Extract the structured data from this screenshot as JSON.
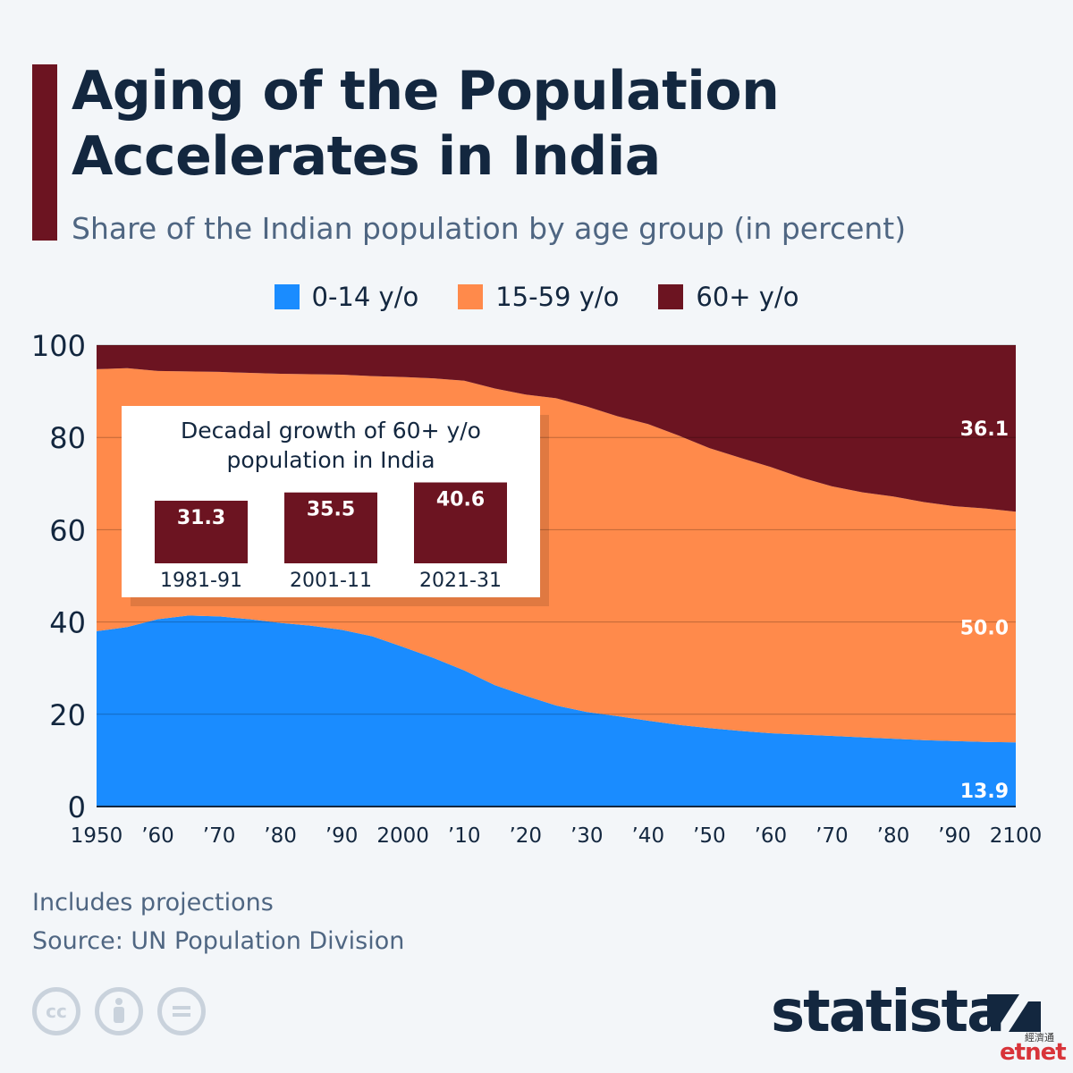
{
  "title": "Aging of the Population Accelerates in India",
  "subtitle": "Share of the Indian population by age group (in percent)",
  "legend": [
    {
      "label": "0-14 y/o",
      "color": "#1a8cff"
    },
    {
      "label": "15-59 y/o",
      "color": "#ff8a4b"
    },
    {
      "label": "60+ y/o",
      "color": "#6c1421"
    }
  ],
  "chart_data": {
    "type": "area",
    "stacked": true,
    "x": [
      1950,
      1955,
      1960,
      1965,
      1970,
      1975,
      1980,
      1985,
      1990,
      1995,
      2000,
      2005,
      2010,
      2015,
      2020,
      2025,
      2030,
      2035,
      2040,
      2045,
      2050,
      2055,
      2060,
      2065,
      2070,
      2075,
      2080,
      2085,
      2090,
      2095,
      2100
    ],
    "series": [
      {
        "name": "0-14 y/o",
        "color": "#1a8cff",
        "values": [
          38.0,
          38.9,
          40.6,
          41.4,
          41.2,
          40.6,
          39.8,
          39.2,
          38.3,
          36.9,
          34.6,
          32.2,
          29.5,
          26.3,
          24.0,
          21.9,
          20.5,
          19.6,
          18.6,
          17.7,
          17.0,
          16.4,
          15.9,
          15.6,
          15.3,
          15.0,
          14.7,
          14.4,
          14.2,
          14.0,
          13.9
        ]
      },
      {
        "name": "15-59 y/o",
        "color": "#ff8a4b",
        "values": [
          56.8,
          56.1,
          53.8,
          52.9,
          53.0,
          53.4,
          54.0,
          54.5,
          55.3,
          56.4,
          58.5,
          60.6,
          62.8,
          64.3,
          65.3,
          66.6,
          66.2,
          65.0,
          64.3,
          62.7,
          60.7,
          59.2,
          57.7,
          55.7,
          54.1,
          53.1,
          52.5,
          51.6,
          50.9,
          50.6,
          50.0
        ]
      },
      {
        "name": "60+ y/o",
        "color": "#6c1421",
        "values": [
          5.2,
          5.0,
          5.6,
          5.7,
          5.8,
          6.0,
          6.2,
          6.3,
          6.4,
          6.7,
          6.9,
          7.2,
          7.7,
          9.4,
          10.7,
          11.5,
          13.3,
          15.4,
          17.1,
          19.6,
          22.3,
          24.4,
          26.4,
          28.7,
          30.6,
          31.9,
          32.8,
          34.0,
          34.9,
          35.4,
          36.1
        ]
      }
    ],
    "end_labels": [
      "13.9",
      "50.0",
      "36.1"
    ],
    "ylim": [
      0,
      100
    ],
    "yticks": [
      "0",
      "20",
      "40",
      "60",
      "80",
      "100"
    ],
    "xticks": [
      "1950",
      "’60",
      "’70",
      "’80",
      "’90",
      "2000",
      "’10",
      "’20",
      "’30",
      "’40",
      "’50",
      "’60",
      "’70",
      "’80",
      "’90",
      "2100"
    ],
    "grid": true,
    "inset": {
      "type": "bar",
      "title": "Decadal growth of 60+ y/o population in India",
      "categories": [
        "1981-91",
        "2001-11",
        "2021-31"
      ],
      "values": [
        31.3,
        35.5,
        40.6
      ],
      "labels": [
        "31.3",
        "35.5",
        "40.6"
      ],
      "color": "#6c1421"
    }
  },
  "notes": [
    "Includes projections",
    "Source: UN Population Division"
  ],
  "brand": "statista",
  "watermark": "etnet",
  "watermark_sub": "經濟通",
  "cc_icons": [
    "cc-icon",
    "by-icon",
    "nd-icon"
  ]
}
